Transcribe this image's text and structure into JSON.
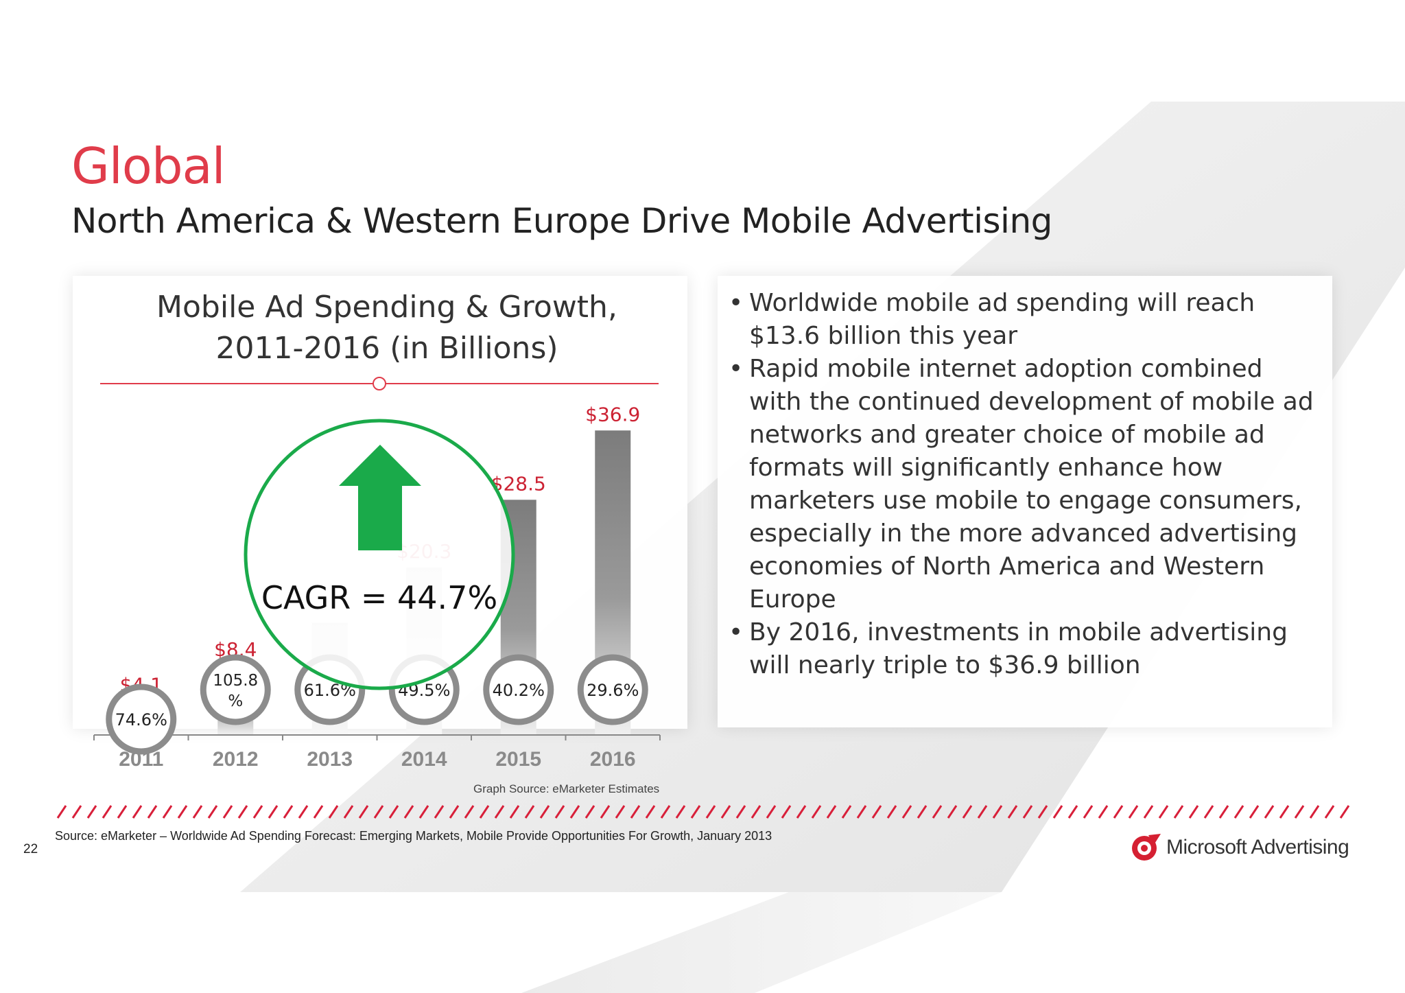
{
  "slide": {
    "title": "Global",
    "subtitle": "North America & Western Europe Drive Mobile Advertising",
    "page_number": "22",
    "graph_source": "Graph Source: eMarketer Estimates",
    "source": "Source: eMarketer – Worldwide Ad Spending Forecast: Emerging Markets, Mobile Provide Opportunities For Growth, January 2013",
    "logo_text": "Microsoft Advertising",
    "colors": {
      "accent_red": "#e03c4a",
      "value_red": "#cc2233",
      "cagr_green": "#1aaa4a",
      "bar_gray": "#7c7c7c"
    }
  },
  "chart_data": {
    "type": "bar",
    "title_lines": [
      "Mobile Ad Spending & Growth,",
      "2011-2016 (in Billions)"
    ],
    "categories": [
      "2011",
      "2012",
      "2013",
      "2014",
      "2015",
      "2016"
    ],
    "values": [
      4.1,
      8.4,
      13.6,
      20.3,
      28.5,
      36.9
    ],
    "value_labels": [
      "$4.1",
      "$8.4",
      "",
      "$20.3",
      "$28.5",
      "$36.9"
    ],
    "growth_labels": [
      "74.6%",
      "105.8\n%",
      "61.6%",
      "49.5%",
      "40.2%",
      "29.6%"
    ],
    "ylim": [
      0,
      40
    ],
    "annotation": "CAGR = 44.7%",
    "xlabel": "",
    "ylabel": ""
  },
  "bullets": [
    "Worldwide mobile ad spending will reach $13.6 billion this year",
    "Rapid mobile internet adoption combined with the continued development of mobile ad networks and greater choice of mobile ad formats will significantly enhance how marketers use mobile to engage consumers, especially in the more advanced advertising economies of North America and Western Europe",
    "By 2016, investments in mobile advertising will nearly triple to $36.9 billion"
  ]
}
